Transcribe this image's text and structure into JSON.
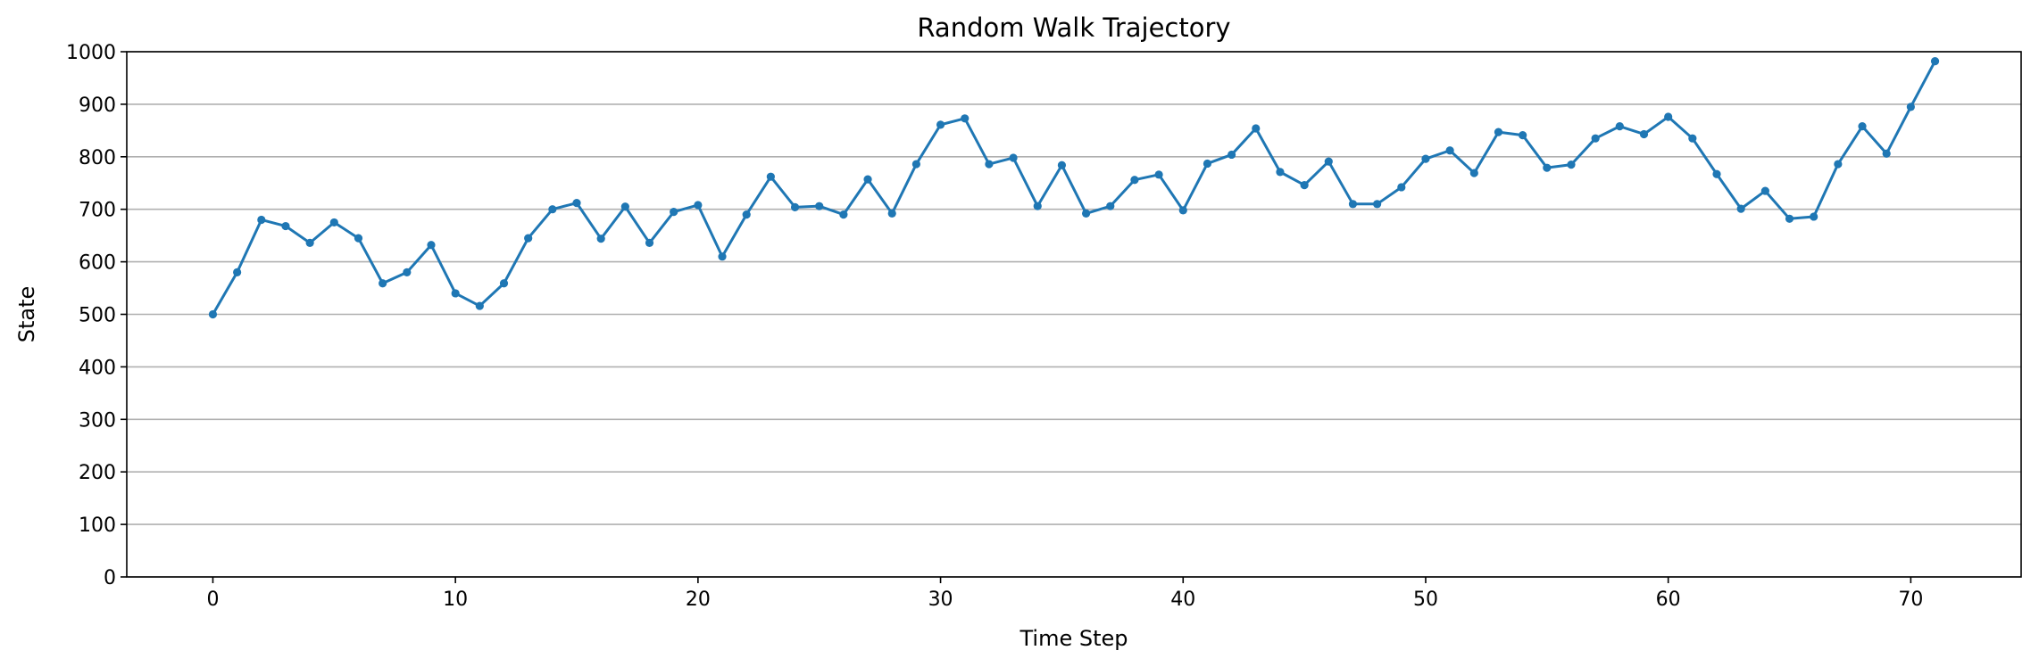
{
  "chart_data": {
    "type": "line",
    "title": "Random Walk Trajectory",
    "xlabel": "Time Step",
    "ylabel": "State",
    "xlim": [
      -3.55,
      74.55
    ],
    "ylim": [
      0,
      1000
    ],
    "xticks": [
      0,
      10,
      20,
      30,
      40,
      50,
      60,
      70
    ],
    "yticks": [
      0,
      100,
      200,
      300,
      400,
      500,
      600,
      700,
      800,
      900,
      1000
    ],
    "grid": "horizontal",
    "color": "#1f77b4",
    "marker": "circle",
    "series": [
      {
        "values": [
          500,
          580,
          680,
          668,
          636,
          675,
          645,
          559,
          580,
          632,
          540,
          516,
          559,
          645,
          700,
          712,
          644,
          705,
          636,
          695,
          708,
          610,
          690,
          762,
          704,
          706,
          690,
          757,
          692,
          786,
          861,
          873,
          786,
          798,
          706,
          784,
          692,
          706,
          756,
          766,
          698,
          787,
          804,
          854,
          771,
          746,
          791,
          710,
          710,
          742,
          796,
          812,
          769,
          847,
          841,
          779,
          785,
          835,
          858,
          843,
          876,
          835,
          767,
          701,
          735,
          682,
          686,
          786,
          858,
          806,
          895,
          982
        ]
      }
    ]
  }
}
